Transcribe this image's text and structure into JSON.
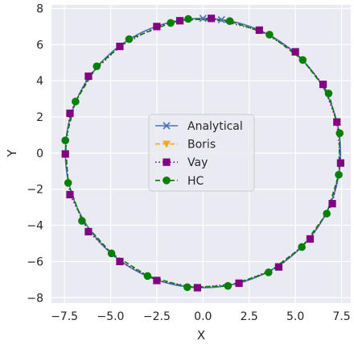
{
  "chart_data": {
    "type": "line",
    "title": "",
    "xlabel": "X",
    "ylabel": "Y",
    "xlim": [
      -8.2,
      8.0
    ],
    "ylim": [
      -8.3,
      8.2
    ],
    "xticks": [
      -7.5,
      -5.0,
      -2.5,
      0.0,
      2.5,
      5.0,
      7.5
    ],
    "xtick_labels": [
      "−7.5",
      "−5.0",
      "−2.5",
      "0.0",
      "2.5",
      "5.0",
      "7.5"
    ],
    "yticks": [
      -8,
      -6,
      -4,
      -2,
      0,
      2,
      4,
      6,
      8
    ],
    "ytick_labels": [
      "−8",
      "−6",
      "−4",
      "−2",
      "0",
      "2",
      "4",
      "6",
      "8"
    ],
    "grid": true,
    "legend_position": "center",
    "background": "#eaeaf2",
    "series": [
      {
        "name": "Analytical",
        "color": "#4c72b0",
        "line_style": "solid",
        "marker": "x",
        "points": [
          [
            0.0,
            7.45
          ],
          [
            1.0,
            7.38
          ]
        ]
      },
      {
        "name": "Boris",
        "color": "#f5a623",
        "line_style": "dashed",
        "marker": "triangle-down",
        "points": []
      },
      {
        "name": "Vay",
        "color": "#800080",
        "line_style": "dotted",
        "marker": "square",
        "points": [
          [
            0.45,
            7.45
          ],
          [
            3.05,
            6.8
          ],
          [
            5.0,
            5.6
          ],
          [
            6.5,
            3.8
          ],
          [
            7.25,
            1.72
          ],
          [
            7.45,
            -0.55
          ],
          [
            7.0,
            -2.8
          ],
          [
            5.8,
            -4.75
          ],
          [
            4.1,
            -6.3
          ],
          [
            1.95,
            -7.2
          ],
          [
            -0.3,
            -7.45
          ],
          [
            -2.5,
            -7.05
          ],
          [
            -4.5,
            -6.0
          ],
          [
            -6.2,
            -4.35
          ],
          [
            -7.2,
            -2.3
          ],
          [
            -7.45,
            -0.05
          ],
          [
            -7.2,
            2.2
          ],
          [
            -6.2,
            4.25
          ],
          [
            -4.5,
            5.9
          ],
          [
            -2.5,
            7.0
          ],
          [
            -1.25,
            7.32
          ]
        ]
      },
      {
        "name": "HC",
        "color": "#008000",
        "line_style": "dashed",
        "marker": "circle",
        "points": [
          [
            -0.8,
            7.42
          ],
          [
            1.45,
            7.3
          ],
          [
            3.6,
            6.55
          ],
          [
            5.4,
            5.15
          ],
          [
            6.8,
            3.3
          ],
          [
            7.4,
            1.1
          ],
          [
            7.35,
            -1.2
          ],
          [
            6.7,
            -3.35
          ],
          [
            5.35,
            -5.2
          ],
          [
            3.55,
            -6.6
          ],
          [
            1.35,
            -7.35
          ],
          [
            -0.85,
            -7.42
          ],
          [
            -3.0,
            -6.8
          ],
          [
            -4.95,
            -5.55
          ],
          [
            -6.55,
            -3.75
          ],
          [
            -7.3,
            -1.65
          ],
          [
            -7.45,
            0.7
          ],
          [
            -6.9,
            2.85
          ],
          [
            -5.75,
            4.8
          ],
          [
            -4.0,
            6.3
          ],
          [
            -1.75,
            7.2
          ]
        ]
      }
    ]
  }
}
